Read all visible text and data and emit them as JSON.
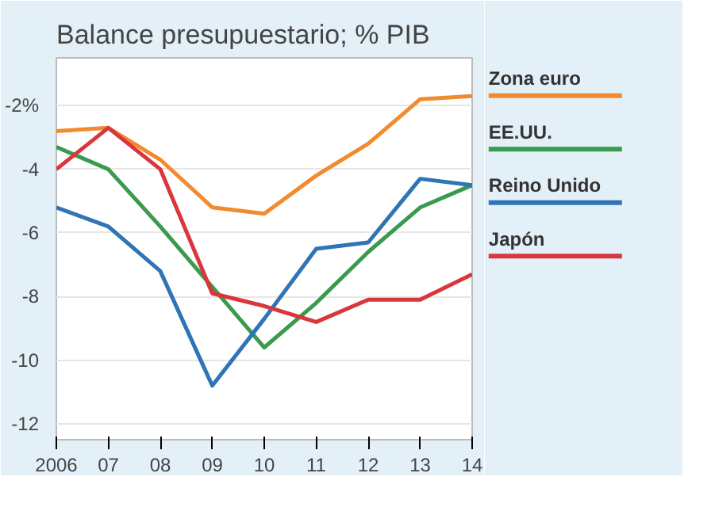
{
  "chart_data": {
    "type": "line",
    "title": "Balance presupuestario; % PIB",
    "x": [
      2006,
      2007,
      2008,
      2009,
      2010,
      2011,
      2012,
      2013,
      2014
    ],
    "xlim": [
      2006,
      2014
    ],
    "xticks": [
      2006,
      {
        "value": 2007,
        "label": "07"
      },
      {
        "value": 2008,
        "label": "08"
      },
      {
        "value": 2009,
        "label": "09"
      },
      {
        "value": 2010,
        "label": "10"
      },
      {
        "value": 2011,
        "label": "11"
      },
      {
        "value": 2012,
        "label": "12"
      },
      {
        "value": 2013,
        "label": "13"
      },
      {
        "value": 2014,
        "label": "14"
      }
    ],
    "ylim": [
      -12.5,
      -0.5
    ],
    "yticks": [
      {
        "value": -2,
        "label": "-2%"
      },
      -4,
      -6,
      -8,
      -10,
      -12
    ],
    "grid": "y",
    "legend": "right",
    "line_style": "solid",
    "series": [
      {
        "name": "Zona euro",
        "color": "#f28a2e",
        "values": [
          -2.8,
          -2.7,
          -3.7,
          -5.2,
          -5.4,
          -4.2,
          -3.2,
          -1.8,
          -1.7
        ]
      },
      {
        "name": "EE.UU.",
        "color": "#3a9a4e",
        "values": [
          -3.3,
          -4.0,
          -5.8,
          -7.7,
          -9.6,
          -8.2,
          -6.6,
          -5.2,
          -4.5
        ]
      },
      {
        "name": "Reino Unido",
        "color": "#2f74b5",
        "values": [
          -5.2,
          -5.8,
          -7.2,
          -10.8,
          -8.7,
          -6.5,
          -6.3,
          -4.3,
          -4.5
        ]
      },
      {
        "name": "Japón",
        "color": "#d9363e",
        "values": [
          -4.0,
          -2.7,
          -4.0,
          -7.9,
          -8.3,
          -8.8,
          -8.1,
          -8.1,
          -7.3
        ]
      }
    ]
  }
}
